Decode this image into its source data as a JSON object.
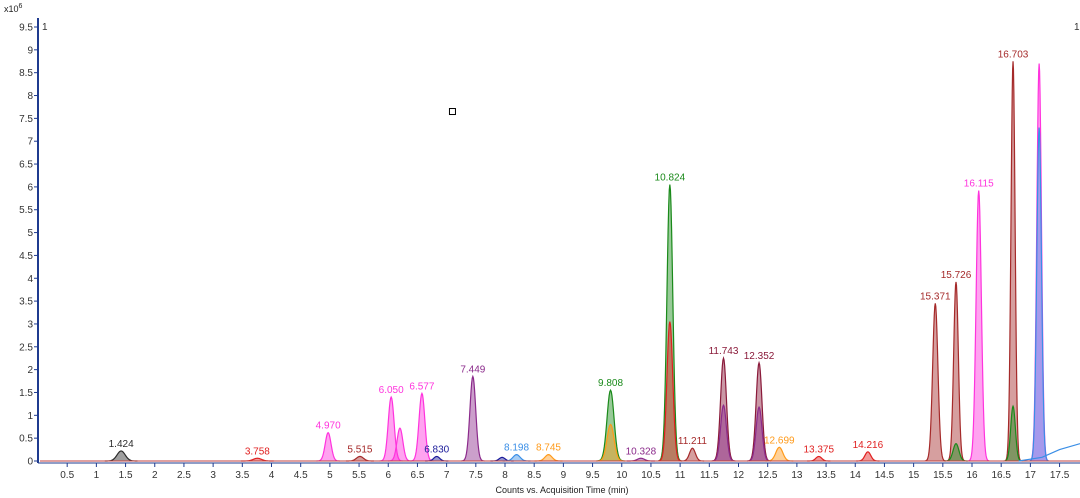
{
  "chart_data": {
    "type": "line",
    "xlabel": "Counts vs. Acquisition Time (min)",
    "ylabel": "",
    "y_scale_label": "x10",
    "y_scale_exponent": "6",
    "top_marker_left": "1",
    "top_marker_right": "1",
    "xlim": [
      0.0,
      17.85
    ],
    "ylim": [
      -0.05,
      10.0
    ],
    "x_ticks": [
      "0.5",
      "1",
      "1.5",
      "2",
      "2.5",
      "3",
      "3.5",
      "4",
      "4.5",
      "5",
      "5.5",
      "6",
      "6.5",
      "7",
      "7.5",
      "8",
      "8.5",
      "9",
      "9.5",
      "10",
      "10.5",
      "11",
      "11.5",
      "12",
      "12.5",
      "13",
      "13.5",
      "14",
      "14.5",
      "15",
      "15.5",
      "16",
      "16.5",
      "17",
      "17.5"
    ],
    "y_ticks": [
      "0",
      "0.5",
      "1",
      "1.5",
      "2",
      "2.5",
      "3",
      "3.5",
      "4",
      "4.5",
      "5",
      "5.5",
      "6",
      "6.5",
      "7",
      "7.5",
      "8",
      "8.5",
      "9",
      "9.5"
    ],
    "series_colors": {
      "black": "#2b2b2b",
      "red": "#e02020",
      "magenta": "#ff33dd",
      "darkred": "#a52a2a",
      "purple": "#8b2a8b",
      "green": "#1a8a1a",
      "blue": "#3a8ee6",
      "orange": "#ff9a1a",
      "navy": "#1a1a9a",
      "maroon": "#8a1a3a"
    },
    "peaks": [
      {
        "x": 1.424,
        "y": 0.22,
        "w": 0.07,
        "color": "black",
        "label": "1.424"
      },
      {
        "x": 3.758,
        "y": 0.06,
        "w": 0.07,
        "color": "red",
        "label": "3.758"
      },
      {
        "x": 4.97,
        "y": 0.62,
        "w": 0.05,
        "color": "magenta",
        "label": "4.970"
      },
      {
        "x": 5.515,
        "y": 0.1,
        "w": 0.06,
        "color": "darkred",
        "label": "5.515"
      },
      {
        "x": 6.05,
        "y": 1.4,
        "w": 0.05,
        "color": "magenta",
        "label": "6.050"
      },
      {
        "x": 6.2,
        "y": 0.72,
        "w": 0.05,
        "color": "magenta",
        "label": ""
      },
      {
        "x": 6.577,
        "y": 1.48,
        "w": 0.05,
        "color": "magenta",
        "label": "6.577"
      },
      {
        "x": 6.83,
        "y": 0.1,
        "w": 0.05,
        "color": "navy",
        "label": "6.830"
      },
      {
        "x": 7.449,
        "y": 1.85,
        "w": 0.05,
        "color": "purple",
        "label": "7.449"
      },
      {
        "x": 7.95,
        "y": 0.08,
        "w": 0.05,
        "color": "navy",
        "label": ""
      },
      {
        "x": 8.198,
        "y": 0.14,
        "w": 0.06,
        "color": "blue",
        "label": "8.198"
      },
      {
        "x": 8.745,
        "y": 0.14,
        "w": 0.06,
        "color": "orange",
        "label": "8.745"
      },
      {
        "x": 9.808,
        "y": 1.55,
        "w": 0.06,
        "color": "green",
        "label": "9.808"
      },
      {
        "x": 9.808,
        "y": 0.8,
        "w": 0.06,
        "color": "orange",
        "label": ""
      },
      {
        "x": 10.328,
        "y": 0.06,
        "w": 0.06,
        "color": "purple",
        "label": "10.328"
      },
      {
        "x": 10.824,
        "y": 6.05,
        "w": 0.05,
        "color": "green",
        "label": "10.824"
      },
      {
        "x": 10.824,
        "y": 3.05,
        "w": 0.05,
        "color": "red",
        "label": ""
      },
      {
        "x": 11.211,
        "y": 0.28,
        "w": 0.05,
        "color": "darkred",
        "label": "11.211"
      },
      {
        "x": 11.743,
        "y": 2.25,
        "w": 0.05,
        "color": "maroon",
        "label": "11.743"
      },
      {
        "x": 11.743,
        "y": 1.22,
        "w": 0.05,
        "color": "purple",
        "label": ""
      },
      {
        "x": 12.352,
        "y": 2.15,
        "w": 0.05,
        "color": "maroon",
        "label": "12.352"
      },
      {
        "x": 12.352,
        "y": 1.18,
        "w": 0.05,
        "color": "purple",
        "label": ""
      },
      {
        "x": 12.699,
        "y": 0.3,
        "w": 0.06,
        "color": "orange",
        "label": "12.699"
      },
      {
        "x": 13.375,
        "y": 0.1,
        "w": 0.05,
        "color": "red",
        "label": "13.375"
      },
      {
        "x": 14.216,
        "y": 0.2,
        "w": 0.05,
        "color": "red",
        "label": "14.216"
      },
      {
        "x": 15.371,
        "y": 3.45,
        "w": 0.045,
        "color": "darkred",
        "label": "15.371"
      },
      {
        "x": 15.726,
        "y": 3.92,
        "w": 0.04,
        "color": "darkred",
        "label": "15.726"
      },
      {
        "x": 15.726,
        "y": 0.38,
        "w": 0.05,
        "color": "green",
        "label": ""
      },
      {
        "x": 16.115,
        "y": 5.92,
        "w": 0.045,
        "color": "magenta",
        "label": "16.115"
      },
      {
        "x": 16.703,
        "y": 8.75,
        "w": 0.035,
        "color": "darkred",
        "label": "16.703"
      },
      {
        "x": 16.703,
        "y": 1.2,
        "w": 0.04,
        "color": "green",
        "label": ""
      },
      {
        "x": 17.15,
        "y": 8.7,
        "w": 0.04,
        "color": "magenta",
        "label": ""
      },
      {
        "x": 17.15,
        "y": 7.3,
        "w": 0.04,
        "color": "blue",
        "label": ""
      }
    ],
    "baseline_drift": {
      "color": "blue",
      "x": [
        16.8,
        17.2,
        17.5,
        17.85
      ],
      "y": [
        0.0,
        0.08,
        0.25,
        0.38
      ]
    },
    "grid": false,
    "legend": "none",
    "marker_box": {
      "x": 7.1,
      "y": 7.65
    }
  }
}
